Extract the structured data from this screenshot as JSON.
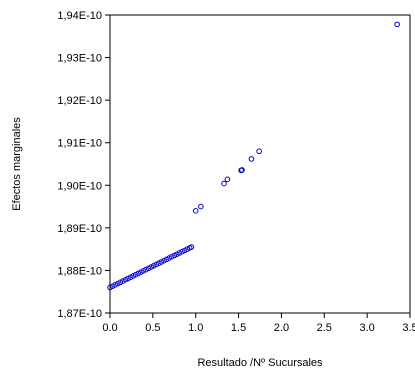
{
  "chart_data": {
    "type": "scatter",
    "title": "",
    "xlabel": "Resultado /Nº Sucursales",
    "ylabel": "Efectos marginales",
    "xlim": [
      0.0,
      3.5
    ],
    "ylim": [
      1.87e-10,
      1.94e-10
    ],
    "xticks": [
      {
        "value": 0.0,
        "label": "0.0"
      },
      {
        "value": 0.5,
        "label": "0.5"
      },
      {
        "value": 1.0,
        "label": "1.0"
      },
      {
        "value": 1.5,
        "label": "1.5"
      },
      {
        "value": 2.0,
        "label": "2.0"
      },
      {
        "value": 2.5,
        "label": "2.5"
      },
      {
        "value": 3.0,
        "label": "3.0"
      },
      {
        "value": 3.5,
        "label": "3.5"
      }
    ],
    "yticks": [
      {
        "value": 1.87e-10,
        "label": "1,87E-10"
      },
      {
        "value": 1.88e-10,
        "label": "1,88E-10"
      },
      {
        "value": 1.89e-10,
        "label": "1,89E-10"
      },
      {
        "value": 1.9e-10,
        "label": "1,90E-10"
      },
      {
        "value": 1.91e-10,
        "label": "1,91E-10"
      },
      {
        "value": 1.92e-10,
        "label": "1,92E-10"
      },
      {
        "value": 1.93e-10,
        "label": "1,93E-10"
      },
      {
        "value": 1.94e-10,
        "label": "1,94E-10"
      }
    ],
    "grid": false,
    "marker_color": "#0000cc",
    "marker": "open-circle",
    "series": [
      {
        "points": [
          [
            0.0,
            1.876e-10
          ],
          [
            0.03,
            1.8763e-10
          ],
          [
            0.06,
            1.8766e-10
          ],
          [
            0.09,
            1.8769e-10
          ],
          [
            0.12,
            1.8772e-10
          ],
          [
            0.15,
            1.8775e-10
          ],
          [
            0.18,
            1.8778e-10
          ],
          [
            0.21,
            1.8781e-10
          ],
          [
            0.24,
            1.8784e-10
          ],
          [
            0.27,
            1.8787e-10
          ],
          [
            0.3,
            1.879e-10
          ],
          [
            0.33,
            1.8793e-10
          ],
          [
            0.36,
            1.8796e-10
          ],
          [
            0.39,
            1.8799e-10
          ],
          [
            0.42,
            1.8802e-10
          ],
          [
            0.45,
            1.8805e-10
          ],
          [
            0.48,
            1.8808e-10
          ],
          [
            0.51,
            1.8811e-10
          ],
          [
            0.54,
            1.8814e-10
          ],
          [
            0.57,
            1.8817e-10
          ],
          [
            0.6,
            1.882e-10
          ],
          [
            0.63,
            1.8823e-10
          ],
          [
            0.66,
            1.8826e-10
          ],
          [
            0.69,
            1.8829e-10
          ],
          [
            0.72,
            1.8832e-10
          ],
          [
            0.75,
            1.8835e-10
          ],
          [
            0.78,
            1.8838e-10
          ],
          [
            0.81,
            1.8841e-10
          ],
          [
            0.84,
            1.8844e-10
          ],
          [
            0.87,
            1.8847e-10
          ],
          [
            0.9,
            1.885e-10
          ],
          [
            0.93,
            1.8853e-10
          ],
          [
            0.95,
            1.8855e-10
          ],
          [
            1.0,
            1.894e-10
          ],
          [
            1.06,
            1.895e-10
          ],
          [
            1.33,
            1.9004e-10
          ],
          [
            1.37,
            1.9014e-10
          ],
          [
            1.53,
            1.9035e-10
          ],
          [
            1.54,
            1.9036e-10
          ],
          [
            1.65,
            1.9062e-10
          ],
          [
            1.74,
            1.908e-10
          ],
          [
            3.35,
            1.9378e-10
          ]
        ]
      }
    ]
  }
}
